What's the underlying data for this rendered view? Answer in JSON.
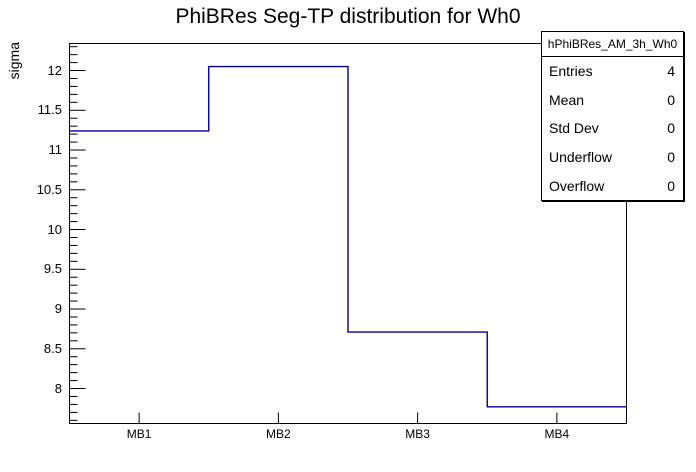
{
  "chart_data": {
    "type": "step-histogram",
    "title": "PhiBRes Seg-TP distribution for Wh0",
    "xlabel": "",
    "ylabel": "sigma",
    "categories": [
      "MB1",
      "MB2",
      "MB3",
      "MB4"
    ],
    "values": [
      11.24,
      12.05,
      8.71,
      7.77
    ],
    "ylim": [
      7.56,
      12.34
    ],
    "y_major_ticks": [
      {
        "value": 8,
        "label": "8"
      },
      {
        "value": 8.5,
        "label": "8.5"
      },
      {
        "value": 9,
        "label": "9"
      },
      {
        "value": 9.5,
        "label": "9.5"
      },
      {
        "value": 10,
        "label": "10"
      },
      {
        "value": 10.5,
        "label": "10.5"
      },
      {
        "value": 11,
        "label": "11"
      },
      {
        "value": 11.5,
        "label": "11.5"
      },
      {
        "value": 12,
        "label": "12"
      }
    ],
    "y_minor_step": 0.1,
    "grid": false,
    "legend": "none",
    "line_color": "#000099",
    "frame_color": "#000000",
    "background": "#ffffff"
  },
  "stats_box": {
    "header": "hPhiBRes_AM_3h_Wh0",
    "rows": [
      {
        "label": "Entries",
        "value": "4"
      },
      {
        "label": "Mean",
        "value": "0"
      },
      {
        "label": "Std Dev",
        "value": "0"
      },
      {
        "label": "Underflow",
        "value": "0"
      },
      {
        "label": "Overflow",
        "value": "0"
      }
    ]
  }
}
